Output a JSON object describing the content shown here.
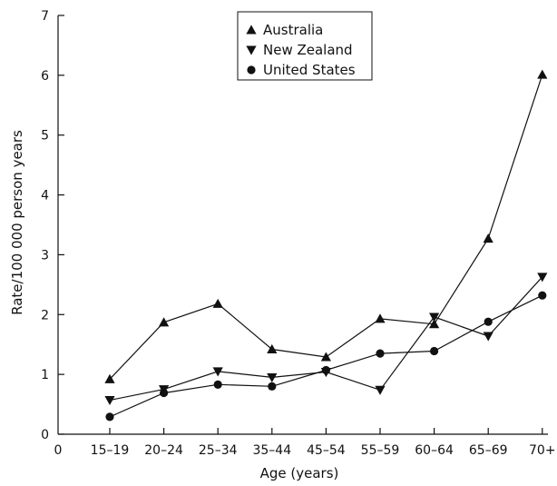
{
  "chart_data": {
    "type": "line",
    "categories": [
      "15–19",
      "20–24",
      "25–34",
      "35–44",
      "45–54",
      "55–59",
      "60–64",
      "65–69",
      "70+"
    ],
    "x_origin_label": "0",
    "series": [
      {
        "name": "Australia",
        "marker": "triangle-up",
        "values": [
          0.92,
          1.87,
          2.18,
          1.42,
          1.29,
          1.93,
          1.84,
          3.27,
          6.01
        ]
      },
      {
        "name": "New Zealand",
        "marker": "triangle-down",
        "values": [
          0.57,
          0.75,
          1.05,
          0.95,
          1.04,
          0.74,
          1.96,
          1.64,
          2.63
        ]
      },
      {
        "name": "United States",
        "marker": "circle",
        "values": [
          0.29,
          0.69,
          0.83,
          0.8,
          1.07,
          1.35,
          1.39,
          1.88,
          2.32
        ]
      }
    ],
    "xlabel": "Age (years)",
    "ylabel": "Rate/100 000 person years",
    "ylim": [
      0,
      7
    ],
    "yticks": [
      0,
      1,
      2,
      3,
      4,
      5,
      6,
      7
    ],
    "grid": false,
    "legend_position": "top-center",
    "colors": {
      "line": "#111111",
      "marker": "#111111"
    }
  }
}
